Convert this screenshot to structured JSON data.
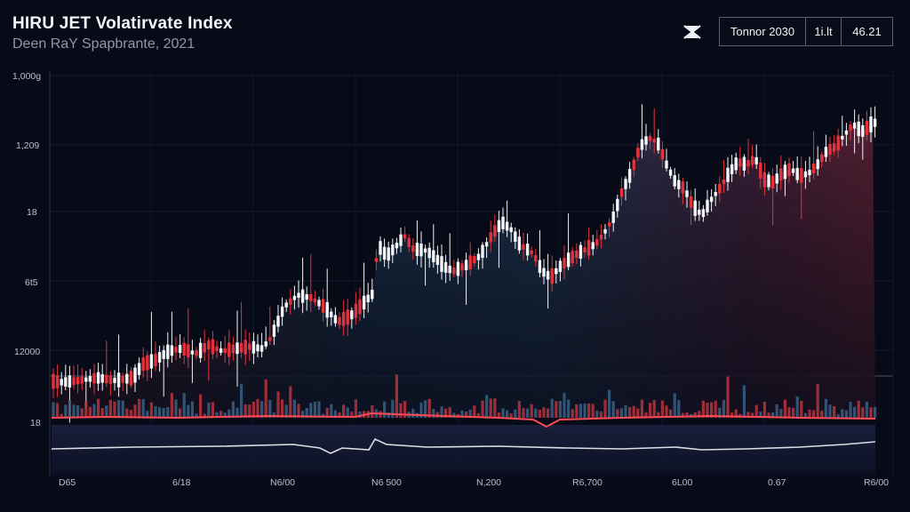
{
  "header": {
    "title": "HIRU JET Volatirvate Index",
    "subtitle": "Deen RaY Spapbrante, 2021"
  },
  "info_box": {
    "label": "Tonnor 2030",
    "mid": "1i.lt",
    "value": "46.21"
  },
  "icons": {
    "close": "close-x-icon"
  },
  "colors": {
    "background": "#070b18",
    "up_candle": "#f2f4f8",
    "down_candle": "#e5323a",
    "volume_up": "#3a5f82",
    "volume_down": "#b8323d",
    "indicator_red": "#ff4a55",
    "indicator_white": "#dcdfe6"
  },
  "chart_data": {
    "type": "candlestick",
    "title": "HIRU JET Volatirvate Index",
    "subtitle": "Deen RaY Spapbrante, 2021",
    "y_tick_labels": [
      "1,000g",
      "1,209",
      "18",
      "6t5",
      "12000",
      "18"
    ],
    "x_tick_labels": [
      "D65",
      "6/18",
      "N6/00",
      "N6 500",
      "N,200",
      "R6,700",
      "6L00",
      "0.67",
      "R6/00"
    ],
    "grid": true,
    "series": [
      {
        "kind": "candles",
        "close_path": [
          [
            0,
            415
          ],
          [
            10,
            428
          ],
          [
            30,
            432
          ],
          [
            50,
            428
          ],
          [
            70,
            430
          ],
          [
            90,
            428
          ],
          [
            110,
            425
          ],
          [
            130,
            428
          ],
          [
            150,
            425
          ],
          [
            160,
            410
          ],
          [
            175,
            405
          ],
          [
            190,
            395
          ],
          [
            205,
            392
          ],
          [
            220,
            398
          ],
          [
            235,
            388
          ],
          [
            250,
            395
          ],
          [
            265,
            392
          ],
          [
            280,
            390
          ],
          [
            295,
            392
          ],
          [
            305,
            380
          ],
          [
            320,
            345
          ],
          [
            335,
            332
          ],
          [
            350,
            335
          ],
          [
            365,
            345
          ],
          [
            380,
            362
          ],
          [
            395,
            355
          ],
          [
            410,
            340
          ],
          [
            420,
            330
          ],
          [
            425,
            275
          ],
          [
            435,
            288
          ],
          [
            445,
            278
          ],
          [
            455,
            265
          ],
          [
            465,
            280
          ],
          [
            480,
            282
          ],
          [
            490,
            290
          ],
          [
            500,
            300
          ],
          [
            510,
            305
          ],
          [
            525,
            298
          ],
          [
            540,
            288
          ],
          [
            555,
            262
          ],
          [
            565,
            250
          ],
          [
            575,
            258
          ],
          [
            585,
            275
          ],
          [
            600,
            285
          ],
          [
            610,
            305
          ],
          [
            620,
            312
          ],
          [
            630,
            300
          ],
          [
            640,
            292
          ],
          [
            650,
            285
          ],
          [
            660,
            280
          ],
          [
            670,
            275
          ],
          [
            680,
            262
          ],
          [
            690,
            245
          ],
          [
            700,
            215
          ],
          [
            710,
            195
          ],
          [
            720,
            165
          ],
          [
            730,
            155
          ],
          [
            740,
            160
          ],
          [
            750,
            185
          ],
          [
            760,
            205
          ],
          [
            770,
            212
          ],
          [
            780,
            232
          ],
          [
            790,
            242
          ],
          [
            800,
            225
          ],
          [
            810,
            212
          ],
          [
            820,
            195
          ],
          [
            830,
            182
          ],
          [
            840,
            185
          ],
          [
            850,
            178
          ],
          [
            860,
            202
          ],
          [
            870,
            205
          ],
          [
            880,
            195
          ],
          [
            890,
            190
          ],
          [
            900,
            198
          ],
          [
            910,
            195
          ],
          [
            920,
            185
          ],
          [
            930,
            170
          ],
          [
            940,
            165
          ],
          [
            950,
            152
          ],
          [
            960,
            140
          ],
          [
            970,
            148
          ],
          [
            980,
            140
          ],
          [
            985,
            138
          ]
        ]
      },
      {
        "kind": "volume",
        "baseline": 470
      },
      {
        "kind": "indicator",
        "color": "red",
        "path": [
          [
            58,
            470
          ],
          [
            120,
            469
          ],
          [
            200,
            470
          ],
          [
            300,
            468
          ],
          [
            400,
            469
          ],
          [
            418,
            465
          ],
          [
            500,
            468
          ],
          [
            560,
            470
          ],
          [
            600,
            472
          ],
          [
            615,
            480
          ],
          [
            630,
            472
          ],
          [
            700,
            470
          ],
          [
            800,
            468
          ],
          [
            900,
            470
          ],
          [
            985,
            471
          ]
        ]
      },
      {
        "kind": "indicator",
        "color": "white",
        "path": [
          [
            58,
            505
          ],
          [
            150,
            503
          ],
          [
            250,
            502
          ],
          [
            330,
            500
          ],
          [
            360,
            504
          ],
          [
            372,
            510
          ],
          [
            385,
            504
          ],
          [
            415,
            506
          ],
          [
            422,
            494
          ],
          [
            435,
            500
          ],
          [
            480,
            503
          ],
          [
            560,
            502
          ],
          [
            640,
            504
          ],
          [
            700,
            505
          ],
          [
            760,
            503
          ],
          [
            790,
            506
          ],
          [
            840,
            505
          ],
          [
            900,
            503
          ],
          [
            950,
            500
          ],
          [
            985,
            497
          ]
        ]
      }
    ]
  }
}
